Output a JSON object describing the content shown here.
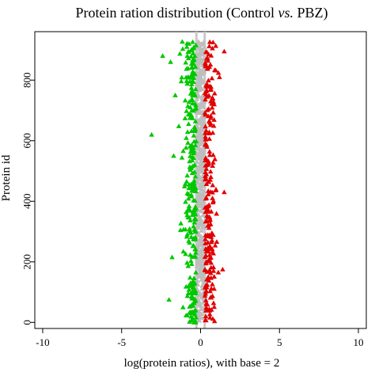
{
  "chart_data": {
    "type": "scatter",
    "title_parts": [
      {
        "text": "Protein ration distribution (Control "
      },
      {
        "text": "vs.",
        "italic": true
      },
      {
        "text": " PBZ)"
      }
    ],
    "xlabel": "log(protein ratios), with base = 2",
    "ylabel": "Protein id",
    "xlim": [
      -10.5,
      10.5
    ],
    "ylim": [
      -20,
      960
    ],
    "xticks": [
      -10,
      -5,
      0,
      5,
      10
    ],
    "yticks": [
      0,
      200,
      400,
      600,
      800
    ],
    "marker": "triangle",
    "threshold_lines": [
      -0.263,
      0.263
    ],
    "point_count": 930,
    "series": [
      {
        "class": "down-regulated",
        "color": "#00c800",
        "log2_ratio_range": [
          -3.1,
          -0.26
        ]
      },
      {
        "class": "unchanged",
        "color": "#bebebe",
        "log2_ratio_range": [
          -0.26,
          0.26
        ]
      },
      {
        "class": "up-regulated",
        "color": "#e00000",
        "log2_ratio_range": [
          0.26,
          1.6
        ]
      }
    ],
    "notable_points": [
      {
        "x": -3.1,
        "y": 620,
        "series": "down-regulated"
      },
      {
        "x": -2.4,
        "y": 880,
        "series": "down-regulated"
      },
      {
        "x": -2.0,
        "y": 75,
        "series": "down-regulated"
      },
      {
        "x": -1.9,
        "y": 860,
        "series": "down-regulated"
      },
      {
        "x": -1.8,
        "y": 215,
        "series": "down-regulated"
      },
      {
        "x": -1.6,
        "y": 750,
        "series": "down-regulated"
      },
      {
        "x": 1.5,
        "y": 895,
        "series": "up-regulated"
      },
      {
        "x": 1.4,
        "y": 175,
        "series": "up-regulated"
      },
      {
        "x": 1.5,
        "y": 430,
        "series": "up-regulated"
      },
      {
        "x": 1.2,
        "y": 810,
        "series": "up-regulated"
      }
    ]
  }
}
